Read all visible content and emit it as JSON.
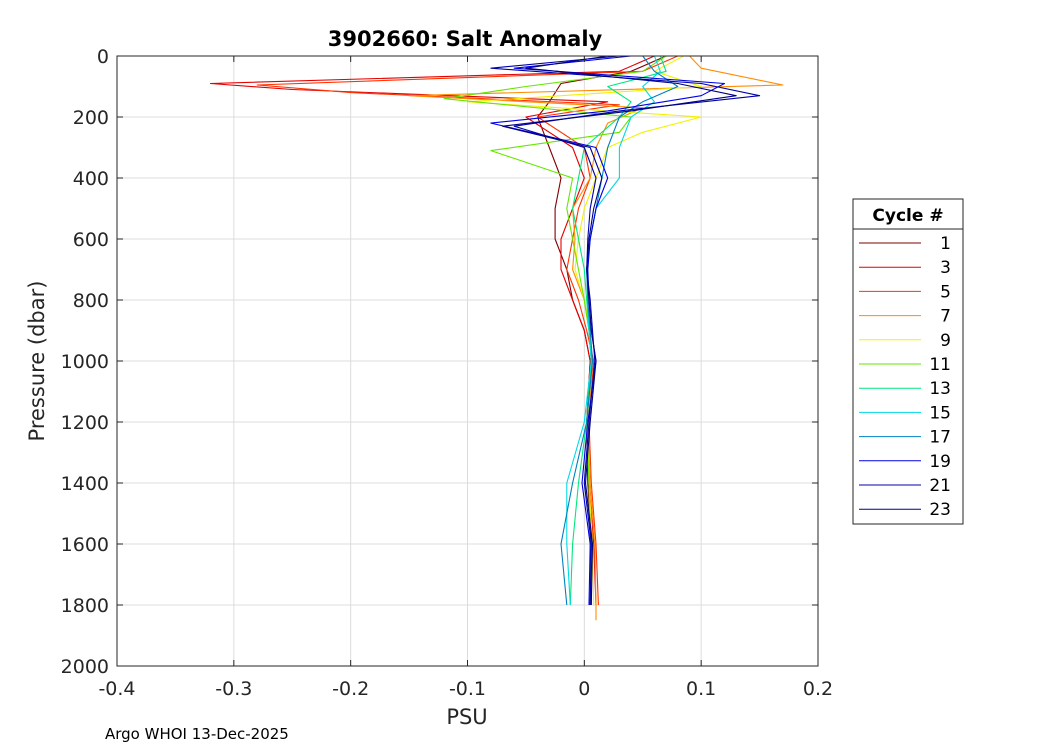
{
  "footer": "Argo WHOI 13-Dec-2025",
  "chart_data": {
    "type": "line",
    "title": "3902660: Salt Anomaly",
    "xlabel": "PSU",
    "ylabel": "Pressure (dbar)",
    "xlim": [
      -0.4,
      0.2
    ],
    "ylim": [
      0,
      2000
    ],
    "y_reversed": true,
    "grid": true,
    "xticks": [
      -0.4,
      -0.3,
      -0.2,
      -0.1,
      0,
      0.1,
      0.2
    ],
    "xtick_labels": [
      "-0.4",
      "-0.3",
      "-0.2",
      "-0.1",
      "0",
      "0.1",
      "0.2"
    ],
    "yticks": [
      0,
      200,
      400,
      600,
      800,
      1000,
      1200,
      1400,
      1600,
      1800,
      2000
    ],
    "ytick_labels": [
      "0",
      "200",
      "400",
      "600",
      "800",
      "1000",
      "1200",
      "1400",
      "1600",
      "1800",
      "2000"
    ],
    "legend_title": "Cycle #",
    "legend_position": "right",
    "series": [
      {
        "name": "1",
        "color": "#800000",
        "pressure": [
          0,
          50,
          90,
          150,
          200,
          300,
          400,
          500,
          600,
          700,
          800,
          900,
          1000,
          1200,
          1400,
          1600,
          1800
        ],
        "values": [
          0.07,
          0.04,
          -0.02,
          -0.03,
          -0.04,
          -0.03,
          -0.02,
          -0.025,
          -0.025,
          -0.015,
          -0.01,
          0.0,
          0.005,
          0.002,
          0.003,
          0.006,
          0.005
        ]
      },
      {
        "name": "3",
        "color": "#e60000",
        "pressure": [
          0,
          50,
          90,
          110,
          150,
          200,
          300,
          400,
          500,
          600,
          700,
          800,
          900,
          1000,
          1200,
          1400,
          1600,
          1800
        ],
        "values": [
          0.06,
          0.03,
          -0.32,
          -0.25,
          0.02,
          -0.05,
          -0.01,
          0.0,
          -0.01,
          -0.02,
          -0.02,
          -0.01,
          0.0,
          0.005,
          0.002,
          0.004,
          0.008,
          0.01
        ]
      },
      {
        "name": "5",
        "color": "#ff3300",
        "pressure": [
          0,
          50,
          95,
          120,
          160,
          200,
          300,
          400,
          500,
          600,
          700,
          800,
          900,
          1000,
          1200,
          1400,
          1600,
          1800
        ],
        "values": [
          0.08,
          0.05,
          -0.28,
          -0.2,
          0.03,
          -0.04,
          0.0,
          0.005,
          -0.005,
          -0.01,
          -0.015,
          -0.005,
          0.002,
          0.008,
          0.004,
          0.006,
          0.01,
          0.012
        ]
      },
      {
        "name": "7",
        "color": "#ff8c00",
        "pressure": [
          0,
          40,
          95,
          130,
          170,
          220,
          300,
          400,
          500,
          600,
          700,
          800,
          900,
          1000,
          1200,
          1400,
          1600,
          1800,
          1850
        ],
        "values": [
          0.09,
          0.1,
          0.17,
          -0.15,
          0.05,
          0.02,
          0.01,
          0.005,
          -0.01,
          -0.008,
          -0.01,
          0.0,
          0.004,
          0.007,
          0.003,
          0.005,
          0.009,
          0.01,
          0.01
        ]
      },
      {
        "name": "9",
        "color": "#f2f200",
        "pressure": [
          0,
          50,
          100,
          150,
          200,
          250,
          300,
          400,
          500,
          600,
          700,
          800,
          900,
          1000,
          1200,
          1400,
          1600,
          1800
        ],
        "values": [
          0.085,
          0.06,
          0.1,
          -0.1,
          0.1,
          0.05,
          0.02,
          0.01,
          0.0,
          -0.005,
          -0.008,
          0.0,
          0.005,
          0.006,
          0.003,
          0.004,
          0.007,
          0.008
        ]
      },
      {
        "name": "11",
        "color": "#66e600",
        "pressure": [
          0,
          50,
          100,
          140,
          200,
          250,
          310,
          400,
          500,
          600,
          700,
          800,
          900,
          1000,
          1200,
          1400,
          1600,
          1800
        ],
        "values": [
          0.07,
          0.05,
          -0.05,
          -0.12,
          0.04,
          0.03,
          -0.08,
          -0.01,
          -0.015,
          -0.01,
          -0.005,
          0.0,
          0.004,
          0.006,
          0.002,
          0.004,
          0.005,
          0.006
        ]
      },
      {
        "name": "13",
        "color": "#00e680",
        "pressure": [
          0,
          50,
          100,
          150,
          200,
          300,
          400,
          500,
          600,
          700,
          800,
          900,
          1000,
          1200,
          1400,
          1600,
          1800
        ],
        "values": [
          0.065,
          0.07,
          0.02,
          0.04,
          0.03,
          0.0,
          -0.005,
          -0.01,
          -0.005,
          0.0,
          0.002,
          0.004,
          0.006,
          0.002,
          -0.005,
          -0.01,
          -0.012
        ]
      },
      {
        "name": "15",
        "color": "#00d9e6",
        "pressure": [
          0,
          50,
          100,
          150,
          200,
          300,
          400,
          500,
          600,
          700,
          800,
          900,
          1000,
          1200,
          1400,
          1600,
          1800
        ],
        "values": [
          0.06,
          0.065,
          0.05,
          0.06,
          0.04,
          0.03,
          0.03,
          0.01,
          0.005,
          0.002,
          0.003,
          0.004,
          0.006,
          0.0,
          -0.015,
          -0.015,
          -0.012
        ]
      },
      {
        "name": "17",
        "color": "#0080c0",
        "pressure": [
          0,
          50,
          100,
          150,
          200,
          300,
          400,
          500,
          600,
          700,
          800,
          900,
          1000,
          1200,
          1400,
          1600,
          1800
        ],
        "values": [
          0.05,
          0.06,
          0.08,
          0.05,
          0.03,
          0.02,
          0.015,
          0.01,
          0.005,
          0.002,
          0.003,
          0.005,
          0.007,
          0.002,
          -0.01,
          -0.02,
          -0.015
        ]
      },
      {
        "name": "19",
        "color": "#0000e6",
        "pressure": [
          0,
          40,
          90,
          130,
          180,
          220,
          300,
          400,
          500,
          600,
          700,
          800,
          900,
          1000,
          1200,
          1400,
          1600,
          1800
        ],
        "values": [
          0.04,
          -0.06,
          0.12,
          0.1,
          0.02,
          -0.08,
          0.01,
          0.02,
          0.01,
          0.005,
          0.003,
          0.004,
          0.006,
          0.01,
          0.003,
          -0.002,
          0.005,
          0.004
        ]
      },
      {
        "name": "21",
        "color": "#0000aa",
        "pressure": [
          0,
          40,
          90,
          130,
          180,
          230,
          300,
          400,
          500,
          600,
          700,
          800,
          900,
          1000,
          1200,
          1400,
          1600,
          1800
        ],
        "values": [
          0.03,
          -0.08,
          0.1,
          0.15,
          0.03,
          -0.06,
          0.0,
          0.01,
          0.005,
          0.003,
          0.002,
          0.005,
          0.007,
          0.009,
          0.004,
          0.0,
          0.006,
          0.005
        ]
      },
      {
        "name": "23",
        "color": "#000080",
        "pressure": [
          0,
          40,
          90,
          130,
          180,
          230,
          300,
          400,
          500,
          600,
          700,
          800,
          900,
          1000,
          1200,
          1400,
          1600,
          1800
        ],
        "values": [
          0.02,
          -0.05,
          0.08,
          0.13,
          0.04,
          -0.07,
          0.005,
          0.015,
          0.008,
          0.004,
          0.002,
          0.004,
          0.006,
          0.01,
          0.005,
          0.001,
          0.007,
          0.006
        ]
      }
    ]
  }
}
